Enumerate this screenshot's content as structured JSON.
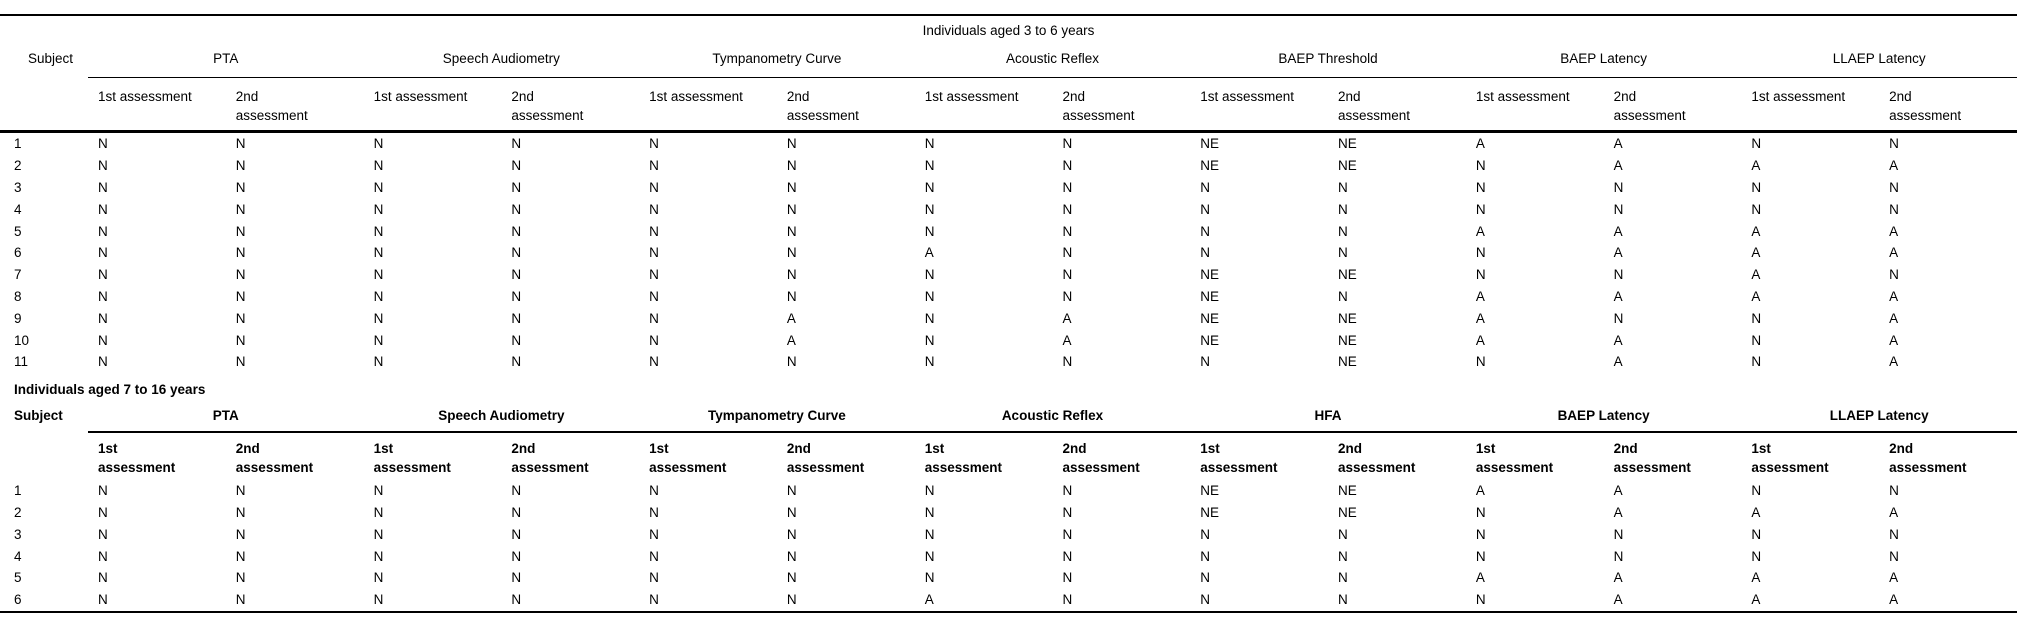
{
  "page": {
    "background_color": "#ffffff",
    "text_color": "#000000",
    "rule_color": "#000000"
  },
  "legend_values": [
    "N",
    "A",
    "NE"
  ],
  "sections": [
    {
      "id": "aged-3-6",
      "title": "Individuals aged 3 to 6 years",
      "subject_header": "Subject",
      "groups": [
        "PTA",
        "Speech Audiometry",
        "Tympanometry Curve",
        "Acoustic Reflex",
        "BAEP Threshold",
        "BAEP Latency",
        "LLAEP Latency"
      ],
      "sub_headers": {
        "first_lines": [
          "1st assessment"
        ],
        "second_lines": [
          "2nd",
          "assessment"
        ]
      },
      "rows": [
        {
          "subject": "1",
          "values": [
            "N",
            "N",
            "N",
            "N",
            "N",
            "N",
            "N",
            "N",
            "NE",
            "NE",
            "A",
            "A",
            "N",
            "N"
          ]
        },
        {
          "subject": "2",
          "values": [
            "N",
            "N",
            "N",
            "N",
            "N",
            "N",
            "N",
            "N",
            "NE",
            "NE",
            "N",
            "A",
            "A",
            "A"
          ]
        },
        {
          "subject": "3",
          "values": [
            "N",
            "N",
            "N",
            "N",
            "N",
            "N",
            "N",
            "N",
            "N",
            "N",
            "N",
            "N",
            "N",
            "N"
          ]
        },
        {
          "subject": "4",
          "values": [
            "N",
            "N",
            "N",
            "N",
            "N",
            "N",
            "N",
            "N",
            "N",
            "N",
            "N",
            "N",
            "N",
            "N"
          ]
        },
        {
          "subject": "5",
          "values": [
            "N",
            "N",
            "N",
            "N",
            "N",
            "N",
            "N",
            "N",
            "N",
            "N",
            "A",
            "A",
            "A",
            "A"
          ]
        },
        {
          "subject": "6",
          "values": [
            "N",
            "N",
            "N",
            "N",
            "N",
            "N",
            "A",
            "N",
            "N",
            "N",
            "N",
            "A",
            "A",
            "A"
          ]
        },
        {
          "subject": "7",
          "values": [
            "N",
            "N",
            "N",
            "N",
            "N",
            "N",
            "N",
            "N",
            "NE",
            "NE",
            "N",
            "N",
            "A",
            "N"
          ]
        },
        {
          "subject": "8",
          "values": [
            "N",
            "N",
            "N",
            "N",
            "N",
            "N",
            "N",
            "N",
            "NE",
            "N",
            "A",
            "A",
            "A",
            "A"
          ]
        },
        {
          "subject": "9",
          "values": [
            "N",
            "N",
            "N",
            "N",
            "N",
            "A",
            "N",
            "A",
            "NE",
            "NE",
            "A",
            "N",
            "N",
            "A"
          ]
        },
        {
          "subject": "10",
          "values": [
            "N",
            "N",
            "N",
            "N",
            "N",
            "A",
            "N",
            "A",
            "NE",
            "NE",
            "A",
            "A",
            "N",
            "A"
          ]
        },
        {
          "subject": "11",
          "values": [
            "N",
            "N",
            "N",
            "N",
            "N",
            "N",
            "N",
            "N",
            "N",
            "NE",
            "N",
            "A",
            "N",
            "A"
          ]
        }
      ]
    },
    {
      "id": "aged-7-16",
      "title": "Individuals aged 7 to 16 years",
      "subject_header": "Subject",
      "groups": [
        "PTA",
        "Speech Audiometry",
        "Tympanometry Curve",
        "Acoustic Reflex",
        "HFA",
        "BAEP Latency",
        "LLAEP Latency"
      ],
      "sub_headers": {
        "first_lines": [
          "1st",
          "assessment"
        ],
        "second_lines": [
          "2nd",
          "assessment"
        ]
      },
      "rows": [
        {
          "subject": "1",
          "values": [
            "N",
            "N",
            "N",
            "N",
            "N",
            "N",
            "N",
            "N",
            "NE",
            "NE",
            "A",
            "A",
            "N",
            "N"
          ]
        },
        {
          "subject": "2",
          "values": [
            "N",
            "N",
            "N",
            "N",
            "N",
            "N",
            "N",
            "N",
            "NE",
            "NE",
            "N",
            "A",
            "A",
            "A"
          ]
        },
        {
          "subject": "3",
          "values": [
            "N",
            "N",
            "N",
            "N",
            "N",
            "N",
            "N",
            "N",
            "N",
            "N",
            "N",
            "N",
            "N",
            "N"
          ]
        },
        {
          "subject": "4",
          "values": [
            "N",
            "N",
            "N",
            "N",
            "N",
            "N",
            "N",
            "N",
            "N",
            "N",
            "N",
            "N",
            "N",
            "N"
          ]
        },
        {
          "subject": "5",
          "values": [
            "N",
            "N",
            "N",
            "N",
            "N",
            "N",
            "N",
            "N",
            "N",
            "N",
            "A",
            "A",
            "A",
            "A"
          ]
        },
        {
          "subject": "6",
          "values": [
            "N",
            "N",
            "N",
            "N",
            "N",
            "N",
            "A",
            "N",
            "N",
            "N",
            "N",
            "A",
            "A",
            "A"
          ]
        }
      ]
    }
  ]
}
